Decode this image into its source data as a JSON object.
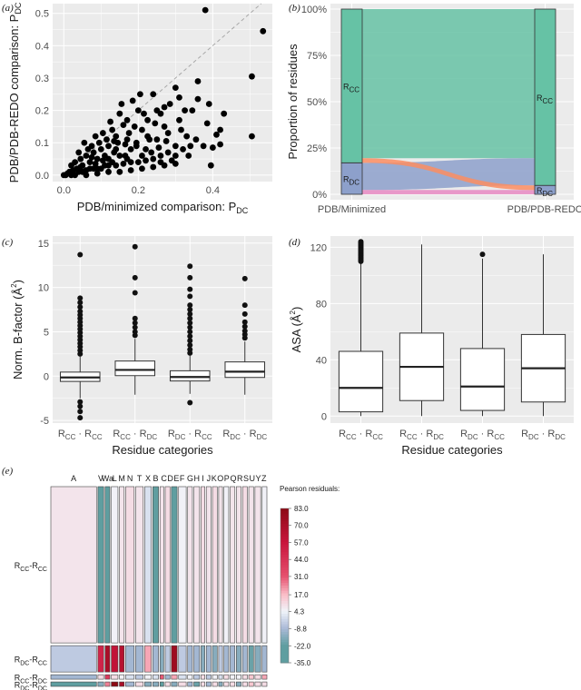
{
  "chart_data": [
    {
      "panel": "(a)",
      "type": "scatter",
      "xlabel": "PDB/minimized comparison: P",
      "xlabel_sub": "DC",
      "ylabel": "PDB/PDB-REDO comparison: P",
      "ylabel_sub": "DC",
      "xlim": [
        -0.03,
        0.56
      ],
      "ylim": [
        -0.02,
        0.53
      ],
      "xticks": [
        "0.0",
        "0.2",
        "0.4"
      ],
      "yticks": [
        "0.0",
        "0.1",
        "0.2",
        "0.3",
        "0.4",
        "0.5"
      ],
      "reference_line": "y = x (dashed)",
      "grid": true,
      "points": [
        [
          0.38,
          0.51
        ],
        [
          0.535,
          0.445
        ],
        [
          0.505,
          0.305
        ],
        [
          0.505,
          0.12
        ],
        [
          0.39,
          0.22
        ],
        [
          0.41,
          0.125
        ],
        [
          0.385,
          0.16
        ],
        [
          0.4,
          0.085
        ],
        [
          0.345,
          0.2
        ],
        [
          0.395,
          0.03
        ],
        [
          0.43,
          0.19
        ],
        [
          0.42,
          0.095
        ],
        [
          0.36,
          0.235
        ],
        [
          0.33,
          0.12
        ],
        [
          0.31,
          0.17
        ],
        [
          0.3,
          0.09
        ],
        [
          0.29,
          0.045
        ],
        [
          0.285,
          0.22
        ],
        [
          0.27,
          0.15
        ],
        [
          0.26,
          0.19
        ],
        [
          0.25,
          0.11
        ],
        [
          0.24,
          0.25
        ],
        [
          0.235,
          0.07
        ],
        [
          0.225,
          0.17
        ],
        [
          0.21,
          0.14
        ],
        [
          0.2,
          0.2
        ],
        [
          0.195,
          0.09
        ],
        [
          0.185,
          0.23
        ],
        [
          0.175,
          0.13
        ],
        [
          0.17,
          0.17
        ],
        [
          0.165,
          0.06
        ],
        [
          0.16,
          0.155
        ],
        [
          0.15,
          0.19
        ],
        [
          0.145,
          0.1
        ],
        [
          0.14,
          0.12
        ],
        [
          0.135,
          0.07
        ],
        [
          0.13,
          0.14
        ],
        [
          0.125,
          0.165
        ],
        [
          0.12,
          0.09
        ],
        [
          0.115,
          0.11
        ],
        [
          0.11,
          0.06
        ],
        [
          0.105,
          0.13
        ],
        [
          0.1,
          0.08
        ],
        [
          0.095,
          0.1
        ],
        [
          0.09,
          0.05
        ],
        [
          0.085,
          0.12
        ],
        [
          0.08,
          0.07
        ],
        [
          0.075,
          0.09
        ],
        [
          0.07,
          0.04
        ],
        [
          0.065,
          0.08
        ],
        [
          0.06,
          0.06
        ],
        [
          0.055,
          0.1
        ],
        [
          0.05,
          0.03
        ],
        [
          0.045,
          0.05
        ],
        [
          0.04,
          0.07
        ],
        [
          0.035,
          0.02
        ],
        [
          0.03,
          0.04
        ],
        [
          0.025,
          0.015
        ],
        [
          0.02,
          0.03
        ],
        [
          0.015,
          0.01
        ],
        [
          0.01,
          0.005
        ],
        [
          0.005,
          0.0
        ],
        [
          0.0,
          0.0
        ],
        [
          0.02,
          0.0
        ],
        [
          0.04,
          0.01
        ],
        [
          0.06,
          0.015
        ],
        [
          0.08,
          0.02
        ],
        [
          0.1,
          0.02
        ],
        [
          0.12,
          0.03
        ],
        [
          0.14,
          0.03
        ],
        [
          0.16,
          0.035
        ],
        [
          0.18,
          0.04
        ],
        [
          0.2,
          0.04
        ],
        [
          0.22,
          0.045
        ],
        [
          0.24,
          0.05
        ],
        [
          0.26,
          0.06
        ],
        [
          0.28,
          0.07
        ],
        [
          0.3,
          0.06
        ],
        [
          0.32,
          0.08
        ],
        [
          0.34,
          0.09
        ],
        [
          0.23,
          0.11
        ],
        [
          0.21,
          0.06
        ],
        [
          0.19,
          0.15
        ],
        [
          0.17,
          0.05
        ],
        [
          0.15,
          0.06
        ],
        [
          0.13,
          0.04
        ],
        [
          0.11,
          0.03
        ],
        [
          0.09,
          0.02
        ],
        [
          0.07,
          0.02
        ],
        [
          0.05,
          0.01
        ],
        [
          0.03,
          0.0
        ],
        [
          0.06,
          0.0
        ],
        [
          0.09,
          0.005
        ],
        [
          0.12,
          0.01
        ],
        [
          0.15,
          0.01
        ],
        [
          0.18,
          0.015
        ],
        [
          0.21,
          0.02
        ],
        [
          0.24,
          0.025
        ],
        [
          0.27,
          0.03
        ],
        [
          0.3,
          0.035
        ],
        [
          0.255,
          0.085
        ],
        [
          0.275,
          0.105
        ],
        [
          0.315,
          0.14
        ],
        [
          0.325,
          0.2
        ],
        [
          0.27,
          0.21
        ],
        [
          0.215,
          0.19
        ],
        [
          0.205,
          0.25
        ],
        [
          0.155,
          0.22
        ],
        [
          0.245,
          0.16
        ],
        [
          0.225,
          0.12
        ],
        [
          0.195,
          0.1
        ],
        [
          0.18,
          0.08
        ],
        [
          0.12,
          0.05
        ],
        [
          0.085,
          0.035
        ],
        [
          0.17,
          0.11
        ],
        [
          0.14,
          0.08
        ],
        [
          0.355,
          0.11
        ],
        [
          0.375,
          0.09
        ],
        [
          0.335,
          0.06
        ],
        [
          0.28,
          0.13
        ],
        [
          0.31,
          0.24
        ],
        [
          0.3,
          0.27
        ],
        [
          0.36,
          0.29
        ],
        [
          0.25,
          0.2
        ],
        [
          0.22,
          0.08
        ],
        [
          0.165,
          0.095
        ],
        [
          0.135,
          0.105
        ],
        [
          0.105,
          0.045
        ],
        [
          0.075,
          0.055
        ],
        [
          0.045,
          0.025
        ],
        [
          0.42,
          0.14
        ],
        [
          0.26,
          0.04
        ]
      ]
    },
    {
      "panel": "(b)",
      "type": "alluvial",
      "ylabel": "Proportion of residues",
      "yticks": [
        "0%",
        "25%",
        "50%",
        "75%",
        "100%"
      ],
      "axes": [
        "PDB/Minimized",
        "PDB/PDB-REDO"
      ],
      "left_strata": [
        {
          "label": "R",
          "sub": "CC",
          "fraction": 0.83
        },
        {
          "label": "R",
          "sub": "DC",
          "fraction": 0.17
        }
      ],
      "right_strata": [
        {
          "label": "R",
          "sub": "CC",
          "fraction": 0.952
        },
        {
          "label": "R",
          "sub": "DC",
          "fraction": 0.048
        }
      ],
      "flows": [
        {
          "from": "RCC",
          "to": "RCC",
          "value": 0.805,
          "color": "#66c2a5"
        },
        {
          "from": "RCC",
          "to": "RDC",
          "value": 0.025,
          "color": "#fc8d62"
        },
        {
          "from": "RDC",
          "to": "RCC",
          "value": 0.147,
          "color": "#8da0cb"
        },
        {
          "from": "RDC",
          "to": "RDC",
          "value": 0.023,
          "color": "#e78ac3"
        }
      ]
    },
    {
      "panel": "(c)",
      "type": "boxplot",
      "ylabel": "Norm. B-factor (Å",
      "ylabel_sup": "2",
      "xlabel": "Residue categories",
      "ylim": [
        -5.3,
        15.8
      ],
      "yticks": [
        -5,
        0,
        5,
        10,
        15
      ],
      "categories": [
        "RCC·RCC",
        "RCC·RDC",
        "RDC·RCC",
        "RDC·RDC"
      ],
      "boxes": [
        {
          "min": -2.5,
          "q1": -0.6,
          "median": -0.15,
          "q3": 0.45,
          "max": 2.2,
          "outliers": [
            -4.7,
            -4.0,
            -3.4,
            -2.9,
            2.5,
            2.9,
            3.3,
            3.7,
            4.1,
            4.5,
            4.9,
            5.3,
            5.7,
            6.1,
            6.5,
            6.9,
            7.3,
            7.8,
            8.3,
            8.8,
            13.7
          ]
        },
        {
          "min": -2.1,
          "q1": 0.05,
          "median": 0.7,
          "q3": 1.7,
          "max": 4.2,
          "outliers": [
            4.6,
            5.0,
            5.5,
            6.0,
            6.5,
            9.4,
            11.1,
            14.6
          ]
        },
        {
          "min": -2.0,
          "q1": -0.55,
          "median": -0.1,
          "q3": 0.6,
          "max": 2.3,
          "outliers": [
            -3.0,
            2.6,
            3.0,
            3.5,
            4.0,
            4.5,
            5.0,
            5.5,
            6.0,
            6.5,
            7.0,
            7.5,
            8.0,
            9.0,
            9.8,
            11.1,
            12.4
          ]
        },
        {
          "min": -2.1,
          "q1": -0.15,
          "median": 0.5,
          "q3": 1.6,
          "max": 3.9,
          "outliers": [
            4.3,
            4.7,
            5.1,
            5.6,
            6.1,
            7.0,
            8.0,
            11.0
          ]
        }
      ]
    },
    {
      "panel": "(d)",
      "type": "boxplot",
      "ylabel": "ASA (Å",
      "ylabel_sup": "2",
      "xlabel": "Residue categories",
      "ylim": [
        -5,
        128
      ],
      "yticks": [
        0,
        40,
        80,
        120
      ],
      "categories": [
        "RCC·RCC",
        "RCC·RDC",
        "RDC·RCC",
        "RDC·RDC"
      ],
      "boxes": [
        {
          "min": 0,
          "q1": 3,
          "median": 20,
          "q3": 46,
          "max": 109,
          "outliers": [
            110,
            111,
            112,
            113,
            114,
            115,
            116,
            117,
            118,
            119,
            120,
            121,
            122,
            123,
            124
          ]
        },
        {
          "min": 0,
          "q1": 11,
          "median": 35,
          "q3": 59,
          "max": 122,
          "outliers": []
        },
        {
          "min": 0,
          "q1": 4,
          "median": 21,
          "q3": 48,
          "max": 112,
          "outliers": [
            115
          ]
        },
        {
          "min": 0,
          "q1": 10,
          "median": 34,
          "q3": 58,
          "max": 115,
          "outliers": []
        }
      ]
    },
    {
      "panel": "(e)",
      "type": "mosaic",
      "legend_title": "Pearson residuals:",
      "legend_ticks": [
        "83.0",
        "70.0",
        "57.0",
        "44.0",
        "31.0",
        "17.0",
        "4.3",
        "-8.8",
        "-22.0",
        "-35.0"
      ],
      "columns": [
        "A",
        "V",
        "Wa",
        "L",
        "M",
        "N",
        "T",
        "X",
        "B",
        "C",
        "D",
        "E",
        "F",
        "G",
        "H",
        "I",
        "J",
        "K",
        "O",
        "P",
        "Q",
        "R",
        "S",
        "U",
        "Y",
        "Z"
      ],
      "column_labels_printed": [
        "A",
        "V",
        "Wa",
        "L",
        "M",
        "N",
        "T",
        "X",
        "B",
        "CDEF",
        "GH",
        "I",
        "J",
        "KOP",
        "QRSUYZ"
      ],
      "column_widths": [
        48,
        6,
        5,
        7,
        5,
        9,
        8,
        7,
        6,
        4,
        5,
        6,
        8,
        5,
        6,
        4,
        5,
        5,
        4,
        5,
        5,
        5,
        5,
        5,
        6,
        5
      ],
      "rows": [
        {
          "label": "R",
          "sub1": "CC",
          "sep": "-",
          "label2": "R",
          "sub2": "CC",
          "fraction": 0.83
        },
        {
          "label": "R",
          "sub1": "DC",
          "sep": "-",
          "label2": "R",
          "sub2": "CC",
          "fraction": 0.14
        },
        {
          "label": "R",
          "sub1": "CC",
          "sep": "-",
          "label2": "R",
          "sub2": "DC",
          "fraction": 0.015
        },
        {
          "label": "R",
          "sub1": "DC",
          "sep": "-",
          "label2": "R",
          "sub2": "DC",
          "fraction": 0.015
        }
      ],
      "residuals": [
        [
          8,
          -30,
          -30,
          5,
          8,
          10,
          8,
          0,
          -25,
          8,
          10,
          -25,
          5,
          8,
          8,
          10,
          8,
          10,
          8,
          5,
          8,
          8,
          10,
          8,
          8,
          5
        ],
        [
          -5,
          50,
          70,
          60,
          65,
          -10,
          -10,
          20,
          -10,
          -15,
          -5,
          75,
          -5,
          -10,
          -10,
          -15,
          -10,
          -15,
          -5,
          -10,
          -10,
          -15,
          -10,
          -20,
          -15,
          -10
        ],
        [
          -10,
          10,
          40,
          10,
          5,
          0,
          -5,
          5,
          0,
          30,
          -10,
          20,
          0,
          5,
          -5,
          10,
          -5,
          5,
          0,
          10,
          5,
          5,
          10,
          15,
          10,
          20
        ],
        [
          -25,
          -15,
          25,
          83,
          70,
          -10,
          10,
          -15,
          -15,
          -25,
          10,
          -15,
          10,
          -10,
          -20,
          10,
          -10,
          10,
          -15,
          10,
          10,
          -15,
          10,
          15,
          10,
          10
        ]
      ]
    }
  ],
  "panel_labels": {
    "a": "(a)",
    "b": "(b)",
    "c": "(c)",
    "d": "(d)",
    "e": "(e)"
  },
  "colors": {
    "panel_bg": "#ebebeb",
    "grid": "#ffffff",
    "point": "#000000",
    "rcc_stratum": "#66c2a5",
    "rdc_stratum": "#8da0cb"
  }
}
